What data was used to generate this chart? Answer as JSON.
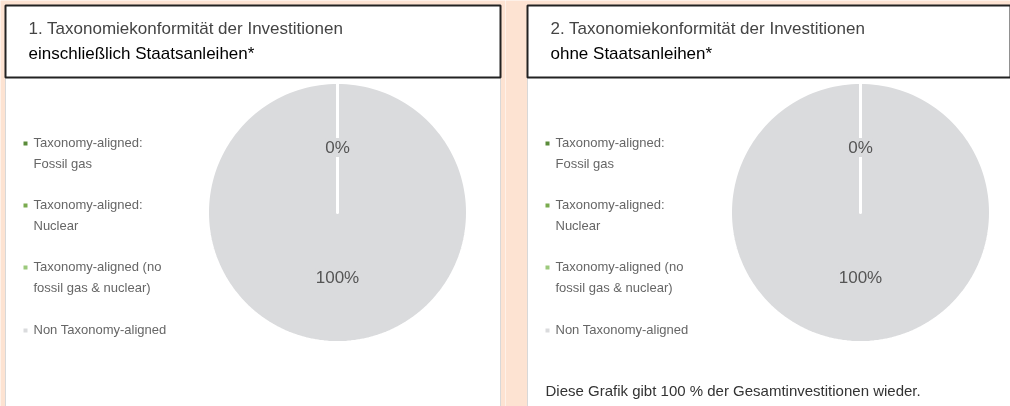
{
  "chart_data": [
    {
      "type": "pie",
      "title": "1. Taxonomiekonformität der Investitionen",
      "subtitle": "einschließlich Staatsanleihen*",
      "categories": [
        "Taxonomy-aligned: Fossil gas",
        "Taxonomy-aligned: Nuclear",
        "Taxonomy-aligned (no fossil gas & nuclear)",
        "Non Taxonomy-aligned"
      ],
      "values": [
        0,
        0,
        0,
        100
      ],
      "colors": [
        "#5b8c3a",
        "#7aab4f",
        "#9cc97c",
        "#dadbdd"
      ],
      "value_labels": [
        "0%",
        null,
        null,
        "100%"
      ],
      "legend": "left"
    },
    {
      "type": "pie",
      "title": "2. Taxonomiekonformität der Investitionen",
      "subtitle": "ohne Staatsanleihen*",
      "categories": [
        "Taxonomy-aligned: Fossil gas",
        "Taxonomy-aligned: Nuclear",
        "Taxonomy-aligned (no fossil gas & nuclear)",
        "Non Taxonomy-aligned"
      ],
      "values": [
        0,
        0,
        0,
        100
      ],
      "colors": [
        "#5b8c3a",
        "#7aab4f",
        "#9cc97c",
        "#dadbdd"
      ],
      "value_labels": [
        "0%",
        null,
        null,
        "100%"
      ],
      "legend": "left",
      "annotations": [
        "Diese Grafik gibt 100 % der Gesamtinvestitionen wieder."
      ]
    }
  ]
}
